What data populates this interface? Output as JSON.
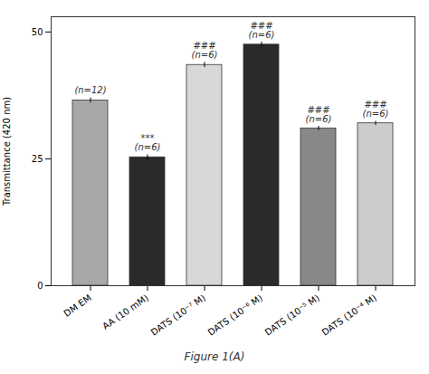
{
  "chart_data": {
    "type": "bar",
    "categories": [
      "DM EM",
      "AA (10 mM)",
      "DATS (10⁻⁷ M)",
      "DATS (10⁻⁶ M)",
      "DATS (10⁻⁵ M)",
      "DATS (10⁻⁴ M)"
    ],
    "values": [
      36.5,
      25.3,
      43.5,
      47.5,
      31.0,
      32.0
    ],
    "errors": [
      0.5,
      0.5,
      0.5,
      0.5,
      0.4,
      0.4
    ],
    "colors": [
      "#a8a8a8",
      "#2a2a2a",
      "#d8d8d8",
      "#2a2a2a",
      "#888888",
      "#cccccc"
    ],
    "ylabel": "Transmittance (420 nm)",
    "ylim": [
      0,
      53
    ],
    "yticks": [
      0,
      25,
      50
    ],
    "grid": false,
    "annotations": [
      {
        "x": "DM EM",
        "text": "(n=12)"
      },
      {
        "x": "AA (10 mM)",
        "text": "***\n(n=6)"
      },
      {
        "x": "DATS (10⁻⁷ M)",
        "text": "###\n(n=6)"
      },
      {
        "x": "DATS (10⁻⁶ M)",
        "text": "###\n(n=6)"
      },
      {
        "x": "DATS (10⁻⁵ M)",
        "text": "###\n(n=6)"
      },
      {
        "x": "DATS (10⁻⁴ M)",
        "text": "###\n(n=6)"
      }
    ],
    "caption": "Figure 1(A)"
  }
}
